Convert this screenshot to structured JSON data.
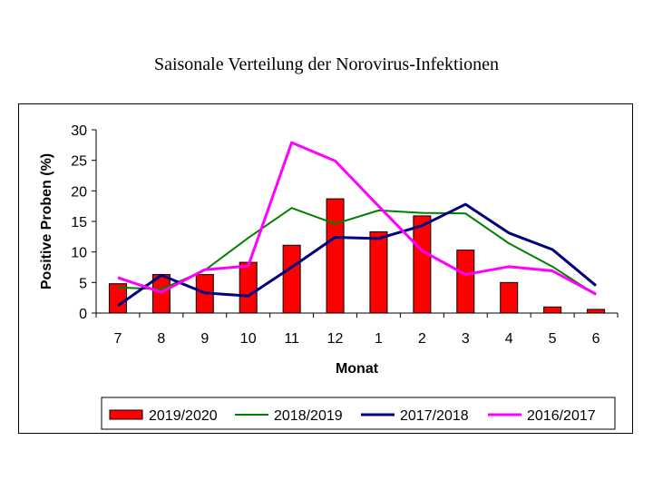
{
  "page": {
    "title": "Saisonale Verteilung der Norovirus-Infektionen"
  },
  "chart_data": {
    "type": "bar",
    "title": "Saisonale Verteilung der Norovirus-Infektionen",
    "xlabel": "Monat",
    "ylabel": "Positive Proben (%)",
    "categories": [
      "7",
      "8",
      "9",
      "10",
      "11",
      "12",
      "1",
      "2",
      "3",
      "4",
      "5",
      "6"
    ],
    "ylim": [
      0,
      30
    ],
    "yticks": [
      0,
      5,
      10,
      15,
      20,
      25,
      30
    ],
    "grid": false,
    "legend_position": "bottom",
    "series": [
      {
        "name": "2019/2020",
        "kind": "bar",
        "color": "#ff0000",
        "values": [
          4.8,
          6.3,
          6.3,
          8.3,
          11.1,
          18.7,
          13.3,
          15.9,
          10.3,
          5.0,
          1.0,
          0.6
        ]
      },
      {
        "name": "2018/2019",
        "kind": "line",
        "color": "#008000",
        "values": [
          4.2,
          3.9,
          7.0,
          12.3,
          17.2,
          14.6,
          16.8,
          16.4,
          16.3,
          11.4,
          7.6,
          3.0
        ]
      },
      {
        "name": "2017/2018",
        "kind": "line",
        "color": "#000080",
        "values": [
          1.2,
          6.2,
          3.3,
          2.8,
          7.5,
          12.4,
          12.2,
          14.3,
          17.8,
          13.1,
          10.4,
          4.5
        ]
      },
      {
        "name": "2016/2017",
        "kind": "line",
        "color": "#ff00ff",
        "values": [
          5.8,
          3.4,
          7.1,
          7.7,
          27.9,
          24.9,
          17.5,
          10.2,
          6.3,
          7.6,
          6.9,
          3.1
        ]
      }
    ]
  }
}
